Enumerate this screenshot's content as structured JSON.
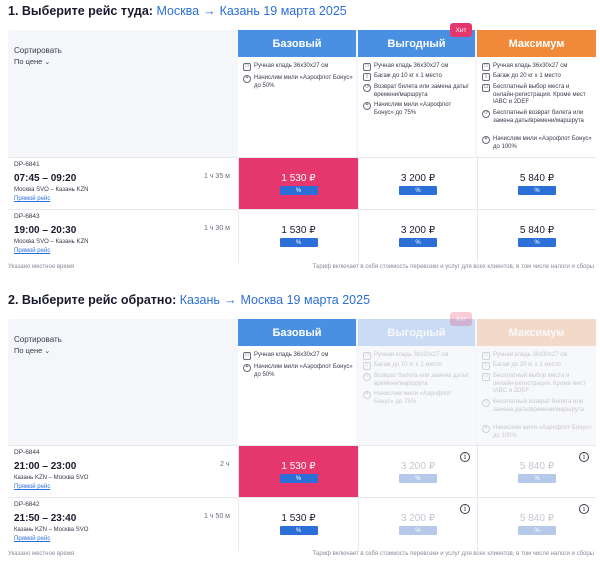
{
  "outbound": {
    "title_prefix": "1. Выберите рейс туда:",
    "from": "Москва",
    "to": "Казань",
    "date": "19 марта 2025",
    "sort_label": "Сортировать",
    "sort_value": "По цене",
    "fares": [
      {
        "name": "Базовый",
        "features": [
          "Ручная кладь 36х30х27 см",
          "Начислим мили «Аэрофлот Бонус» до 50%"
        ]
      },
      {
        "name": "Выгодный",
        "badge": "Хит",
        "features": [
          "Ручная кладь 36х30х27 см",
          "Багаж до 10 кг х 1 место",
          "Возврат билета или замена даты/времени/маршрута",
          "Начислим мили «Аэрофлот Бонус» до 75%"
        ]
      },
      {
        "name": "Максимум",
        "features": [
          "Ручная кладь 36х30х27 см",
          "Багаж до 20 кг х 1 место",
          "Бесплатный выбор места и онлайн-регистрация. Кроме мест IABC и 2DEF",
          "Бесплатный возврат билета или замена даты/времени/маршрута",
          "Начислим мили «Аэрофлот Бонус» до 100%"
        ]
      }
    ],
    "flights": [
      {
        "code": "DP-6841",
        "time": "07:45 – 09:20",
        "route": "Москва SVO – Казань KZN",
        "direct": "Прямой рейс",
        "duration": "1 ч 35 м",
        "prices": [
          "1 530 ₽",
          "3 200 ₽",
          "5 840 ₽"
        ],
        "pct": "%"
      },
      {
        "code": "DP-6843",
        "time": "19:00 – 20:30",
        "route": "Москва SVO – Казань KZN",
        "direct": "Прямой рейс",
        "duration": "1 ч 30 м",
        "prices": [
          "1 530 ₽",
          "3 200 ₽",
          "5 840 ₽"
        ],
        "pct": "%"
      }
    ],
    "note_left": "Указано местное время",
    "note_right": "Тариф включает в себя стоимость перевозки и услуг для всех клиентов, в том числе налоги и сборы"
  },
  "return": {
    "title_prefix": "2. Выберите рейс обратно:",
    "from": "Казань",
    "to": "Москва",
    "date": "19 марта 2025",
    "sort_label": "Сортировать",
    "sort_value": "По цене",
    "fares": [
      {
        "name": "Базовый",
        "features": [
          "Ручная кладь 36х30х27 см",
          "Начислим мили «Аэрофлот Бонус» до 50%"
        ]
      },
      {
        "name": "Выгодный",
        "badge": "Хит",
        "features": [
          "Ручная кладь 36х30х27 см",
          "Багаж до 10 кг х 1 место",
          "Возврат билета или замена даты/времени/маршрута",
          "Начислим мили «Аэрофлот Бонус» до 75%"
        ]
      },
      {
        "name": "Максимум",
        "features": [
          "Ручная кладь 36х30х27 см",
          "Багаж до 20 кг х 1 место",
          "Бесплатный выбор места и онлайн-регистрация. Кроме мест IABC и 2DEF",
          "Бесплатный возврат билета или замена даты/времени/маршрута",
          "Начислим мили «Аэрофлот Бонус» до 100%"
        ]
      }
    ],
    "flights": [
      {
        "code": "DP-6844",
        "time": "21:00 – 23:00",
        "route": "Казань KZN – Москва SVO",
        "direct": "Прямой рейс",
        "duration": "2 ч",
        "prices": [
          "1 530 ₽",
          "3 200 ₽",
          "5 840 ₽"
        ],
        "pct": "%"
      },
      {
        "code": "DP-6842",
        "time": "21:50 – 23:40",
        "route": "Казань KZN – Москва SVO",
        "direct": "Прямой рейс",
        "duration": "1 ч 50 м",
        "prices": [
          "1 530 ₽",
          "3 200 ₽",
          "5 840 ₽"
        ],
        "pct": "%"
      }
    ],
    "note_left": "Указано местное время",
    "note_right": "Тариф включает в себя стоимость перевозки и услуг для всех клиентов, в том числе налоги и сборы"
  },
  "info_glyph": "i",
  "chevron_glyph": "⌄",
  "arrow_glyph": "→"
}
